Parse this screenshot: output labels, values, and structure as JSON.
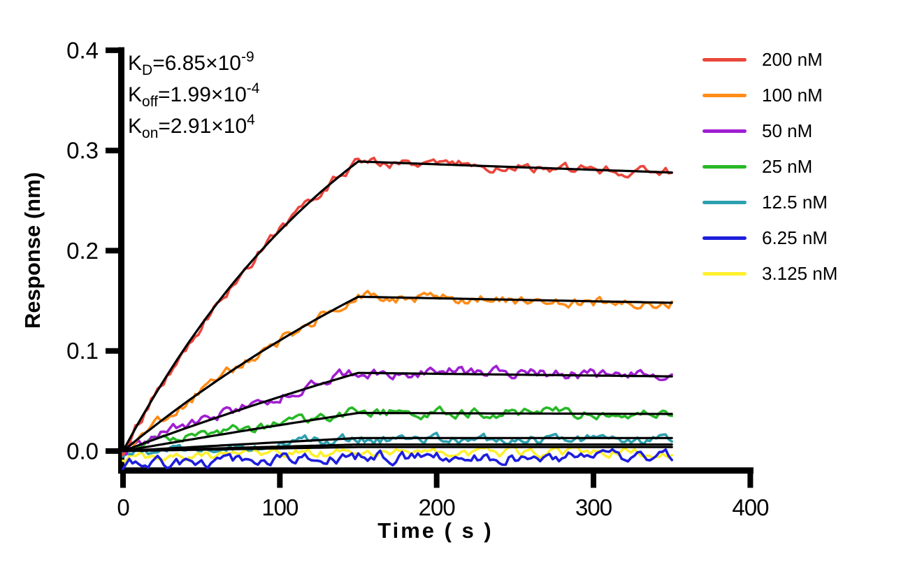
{
  "page": {
    "background_color": "#FFFFFF"
  },
  "chart_data": {
    "type": "line",
    "title": "",
    "xlabel": "Time ( s )",
    "ylabel": "Response (nm)",
    "xlim": [
      0,
      400
    ],
    "ylim": [
      -0.02,
      0.4
    ],
    "x_ticks": [
      "0",
      "100",
      "200",
      "300",
      "400"
    ],
    "y_ticks": [
      "0.0",
      "0.1",
      "0.2",
      "0.3",
      "0.4"
    ],
    "grid": false,
    "legend_position": "right-outside",
    "annotations": [
      {
        "k": "K",
        "sub": "D",
        "value": "=6.85×10",
        "exp": "-9"
      },
      {
        "k": "K",
        "sub": "off",
        "value": "=1.99×10",
        "exp": "-4"
      },
      {
        "k": "K",
        "sub": "on",
        "value": "=2.91×10",
        "exp": "4"
      }
    ],
    "fit": {
      "color": "#000000",
      "association_end_s": 150,
      "trace_end_s": 350,
      "sample_step_s": 2
    },
    "series": [
      {
        "label": "200 nM",
        "concentration_nM": 200,
        "color": "#EB463C",
        "response_at_150s": 0.289,
        "response_at_350s": 0.278,
        "kobs": 0.00602,
        "baseline_offset": 0.0,
        "noise_amplitude": 0.0045,
        "seed": 11
      },
      {
        "label": "100 nM",
        "concentration_nM": 100,
        "color": "#FF8C19",
        "response_at_150s": 0.154,
        "response_at_350s": 0.148,
        "kobs": 0.00311,
        "baseline_offset": 0.0,
        "noise_amplitude": 0.0048,
        "seed": 23
      },
      {
        "label": "50 nM",
        "concentration_nM": 50,
        "color": "#A01ED2",
        "response_at_150s": 0.078,
        "response_at_350s": 0.0745,
        "kobs": 0.001655,
        "baseline_offset": 0.0015,
        "noise_amplitude": 0.0052,
        "seed": 37
      },
      {
        "label": "25 nM",
        "concentration_nM": 25,
        "color": "#28B928",
        "response_at_150s": 0.038,
        "response_at_350s": 0.037,
        "kobs": 0.000927,
        "baseline_offset": 0.001,
        "noise_amplitude": 0.0046,
        "seed": 51
      },
      {
        "label": "12.5 nM",
        "concentration_nM": 12.5,
        "color": "#2DA0AF",
        "response_at_150s": 0.013,
        "response_at_350s": 0.013,
        "kobs": 0.000563,
        "baseline_offset": -0.001,
        "noise_amplitude": 0.0046,
        "seed": 67
      },
      {
        "label": "6.25 nM",
        "concentration_nM": 6.25,
        "color": "#1E1EDC",
        "response_at_150s": 0.0065,
        "response_at_350s": 0.0065,
        "kobs": 0.000381,
        "baseline_offset": -0.0125,
        "noise_amplitude": 0.0052,
        "seed": 83
      },
      {
        "label": "3.125 nM",
        "concentration_nM": 3.125,
        "color": "#FFF02D",
        "response_at_150s": 0.004,
        "response_at_350s": 0.004,
        "kobs": 0.00029,
        "baseline_offset": -0.006,
        "noise_amplitude": 0.0042,
        "seed": 95
      }
    ]
  }
}
